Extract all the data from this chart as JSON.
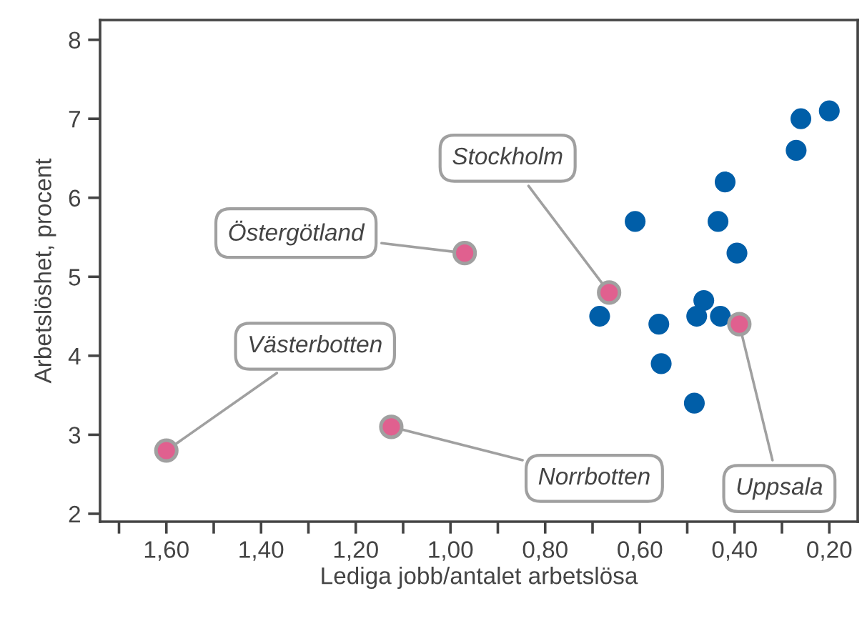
{
  "chart_data": {
    "type": "scatter",
    "xlabel": "Lediga jobb/antalet arbetslösa",
    "ylabel": "Arbetslöshet, procent",
    "series": [
      {
        "color": "#005ea8",
        "x": [
          0.2,
          0.26,
          0.27,
          0.42,
          0.61,
          0.435,
          0.395,
          0.465,
          0.48,
          0.43,
          0.685,
          0.56,
          0.555,
          0.485
        ],
        "values": [
          7.1,
          7.0,
          6.6,
          6.2,
          5.7,
          5.7,
          5.3,
          4.7,
          4.5,
          4.5,
          4.5,
          4.4,
          3.9,
          3.4
        ]
      },
      {
        "color": "#e0608f",
        "x": [
          0.665,
          0.39,
          0.97,
          1.125,
          1.6
        ],
        "values": [
          4.8,
          4.4,
          5.3,
          3.1,
          2.8
        ]
      }
    ],
    "annotations": [
      {
        "text": "Stockholm",
        "x": 0.665,
        "y": 4.8
      },
      {
        "text": "Uppsala",
        "x": 0.39,
        "y": 4.4
      },
      {
        "text": "Östergötland",
        "x": 0.97,
        "y": 5.3
      },
      {
        "text": "Norrbotten",
        "x": 1.125,
        "y": 3.1
      },
      {
        "text": "Västerbotten",
        "x": 1.6,
        "y": 2.8
      }
    ],
    "xlim": [
      1.74,
      0.14
    ],
    "xticks": [
      {
        "value": 1.7,
        "label": null
      },
      {
        "value": 1.6,
        "label": "1,60"
      },
      {
        "value": 1.5,
        "label": null
      },
      {
        "value": 1.4,
        "label": "1,40"
      },
      {
        "value": 1.3,
        "label": null
      },
      {
        "value": 1.2,
        "label": "1,20"
      },
      {
        "value": 1.1,
        "label": null
      },
      {
        "value": 1.0,
        "label": "1,00"
      },
      {
        "value": 0.9,
        "label": null
      },
      {
        "value": 0.8,
        "label": "0,80"
      },
      {
        "value": 0.7,
        "label": null
      },
      {
        "value": 0.6,
        "label": "0,60"
      },
      {
        "value": 0.5,
        "label": null
      },
      {
        "value": 0.4,
        "label": "0,40"
      },
      {
        "value": 0.3,
        "label": null
      },
      {
        "value": 0.2,
        "label": "0,20"
      }
    ],
    "ylim": [
      1.9,
      8.25
    ],
    "yticks": [
      2,
      3,
      4,
      5,
      6,
      7,
      8
    ],
    "marker": "circle",
    "grid": false,
    "legend": false
  }
}
